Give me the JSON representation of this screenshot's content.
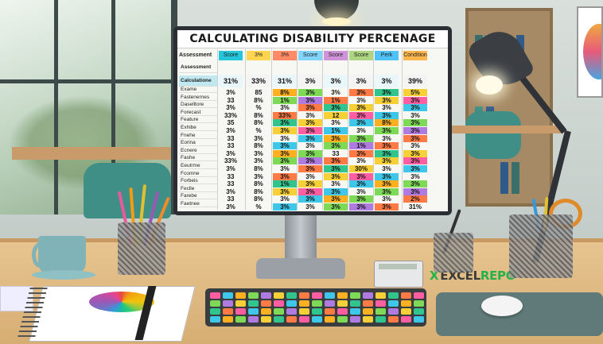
{
  "monitor": {
    "title": "CALCULATING DISABILITY PERCENAGE"
  },
  "sheet": {
    "column_headers": [
      "Assessment",
      "Score",
      "3%",
      "3%",
      "Score",
      "Score",
      "Score",
      "Perk",
      "Condition"
    ],
    "row_labels": [
      "Assessment",
      "Calculatione",
      "Exame",
      "Fastenernes",
      "Daselltore",
      "Forecast",
      "Feature",
      "Exhibe",
      "Fnehe",
      "Eorina",
      "Ecnere",
      "Fashe",
      "Eeutrme",
      "Fcomne",
      "Forbeis",
      "Feclle",
      "Farebe",
      "Faetnee"
    ],
    "header_values": [
      "31%",
      "33%",
      "31%",
      "3%",
      "3%",
      "3%",
      "3%",
      "39%"
    ],
    "rows": [
      [
        "3%",
        "85",
        "8%",
        "3%",
        "3%",
        "3%",
        "3%",
        "5%"
      ],
      [
        "33",
        "8%",
        "1%",
        "3%",
        "1%",
        "3%",
        "3%",
        "3%"
      ],
      [
        "3%",
        "%",
        "3%",
        "3%",
        "3%",
        "3%",
        "3%",
        "3%"
      ],
      [
        "33%",
        "8%",
        "33%",
        "3%",
        "12",
        "3%",
        "3%",
        "3%"
      ],
      [
        "35",
        "8%",
        "3%",
        "3%",
        "3%",
        "3%",
        "8%",
        "3%"
      ],
      [
        "3%",
        "%",
        "3%",
        "3%",
        "1%",
        "3%",
        "3%",
        "3%"
      ],
      [
        "33",
        "3%",
        "3%",
        "3%",
        "3%",
        "3%",
        "3%",
        "3%"
      ],
      [
        "33",
        "8%",
        "3%",
        "3%",
        "3%",
        "1%",
        "3%",
        "3%"
      ],
      [
        "3%",
        "3%",
        "3%",
        "3%",
        "33",
        "3%",
        "3%",
        "3%"
      ],
      [
        "33%",
        "3%",
        "3%",
        "3%",
        "3%",
        "3%",
        "3%",
        "3%"
      ],
      [
        "3%",
        "8%",
        "3%",
        "3%",
        "3%",
        "30%",
        "3%",
        "3%"
      ],
      [
        "33",
        "3%",
        "3%",
        "3%",
        "3%",
        "3%",
        "3%",
        "3%"
      ],
      [
        "33",
        "8%",
        "1%",
        "3%",
        "3%",
        "3%",
        "3%",
        "3%"
      ],
      [
        "3%",
        "8%",
        "3%",
        "3%",
        "3%",
        "3%",
        "3%",
        "3%"
      ],
      [
        "33",
        "8%",
        "3%",
        "3%",
        "3%",
        "3%",
        "3%",
        "2%"
      ],
      [
        "3%",
        "%",
        "3%",
        "3%",
        "3%",
        "3%",
        "3%",
        "31%"
      ]
    ]
  },
  "brand": {
    "x": "X",
    "excel": "EXCEL",
    "repo": "REPO"
  },
  "colors": {
    "accent_green": "#26b24b",
    "desk": "#e0b984",
    "monitor_frame": "#2b2f33"
  },
  "icons": [
    "color-wheel-icon",
    "mouse-icon",
    "keyboard-icon",
    "calculator-icon",
    "desk-lamp-icon"
  ]
}
